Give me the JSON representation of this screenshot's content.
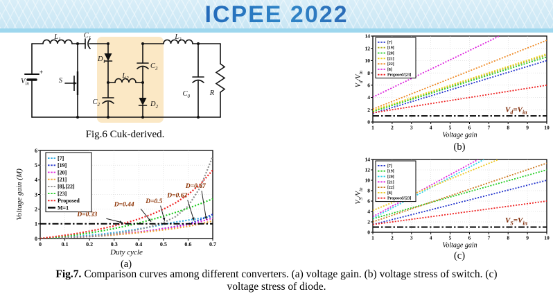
{
  "header": {
    "title": "ICPEE 2022"
  },
  "figure6": {
    "caption": "Fig.6 Cuk-derived.",
    "labels": {
      "vin": [
        "V",
        "in"
      ],
      "plus": "+",
      "l1": [
        "L",
        "1"
      ],
      "c1": [
        "C",
        "1"
      ],
      "s": [
        "S",
        ""
      ],
      "d1": [
        "D",
        "1"
      ],
      "c3": [
        "C",
        "3"
      ],
      "l2": [
        "L",
        "2"
      ],
      "c2": [
        "C",
        "2"
      ],
      "d2": [
        "D",
        "2"
      ],
      "l3": [
        "L",
        "3"
      ],
      "c0": [
        "C",
        "0"
      ],
      "r": [
        "R",
        ""
      ]
    }
  },
  "figure7": {
    "fig_label": "Fig.7.",
    "caption_line1": "Comparison curves among different converters. (a) voltage gain. (b) voltage stress of switch. (c)",
    "caption_line2": "voltage stress of diode."
  },
  "chart_data": [
    {
      "id": "a",
      "type": "line",
      "sublabel": "(a)",
      "xlabel": "Duty cycle",
      "ylabel": "Voltage gain (M)",
      "xlim": [
        0,
        0.7
      ],
      "ylim": [
        0,
        6
      ],
      "grid": true,
      "legend_position": "top-left",
      "xticks": [
        0,
        0.1,
        0.2,
        0.3,
        0.4,
        0.5,
        0.6,
        0.7
      ],
      "yticks": [
        0,
        1,
        2,
        3,
        4,
        5,
        6
      ],
      "ann_color": "#8B3000",
      "series": [
        {
          "name": "[7]",
          "color": "#2aa8e0",
          "x": [
            0,
            0.05,
            0.1,
            0.15,
            0.2,
            0.25,
            0.3,
            0.35,
            0.4,
            0.45,
            0.5,
            0.55,
            0.6,
            0.65,
            0.7
          ],
          "y": [
            0,
            0.04,
            0.09,
            0.15,
            0.22,
            0.3,
            0.4,
            0.52,
            0.65,
            0.8,
            0.97,
            1.12,
            1.25,
            1.38,
            1.5
          ]
        },
        {
          "name": "[19]",
          "color": "#2233cc",
          "x": [
            0,
            0.05,
            0.1,
            0.15,
            0.2,
            0.25,
            0.3,
            0.35,
            0.4,
            0.45,
            0.5,
            0.55,
            0.6,
            0.65,
            0.7
          ],
          "y": [
            0,
            0.02,
            0.05,
            0.09,
            0.13,
            0.18,
            0.25,
            0.33,
            0.43,
            0.55,
            0.68,
            0.82,
            1.0,
            1.28,
            1.65
          ]
        },
        {
          "name": "[20]",
          "color": "#e020e0",
          "x": [
            0,
            0.05,
            0.1,
            0.15,
            0.2,
            0.25,
            0.3,
            0.35,
            0.4,
            0.45,
            0.5,
            0.55,
            0.6,
            0.65,
            0.7
          ],
          "y": [
            0,
            0.03,
            0.06,
            0.1,
            0.15,
            0.21,
            0.28,
            0.36,
            0.45,
            0.55,
            0.67,
            0.8,
            0.95,
            1.15,
            1.4
          ]
        },
        {
          "name": "[21]",
          "color": "#f0a438",
          "x": [
            0,
            0.05,
            0.1,
            0.15,
            0.2,
            0.25,
            0.3,
            0.35,
            0.4,
            0.45,
            0.5,
            0.55,
            0.6,
            0.65,
            0.7
          ],
          "y": [
            0,
            0.02,
            0.05,
            0.09,
            0.14,
            0.19,
            0.25,
            0.32,
            0.4,
            0.49,
            0.59,
            0.7,
            0.83,
            1.0,
            1.2
          ]
        },
        {
          "name": "[8],[22]",
          "color": "#8c8c8c",
          "x": [
            0,
            0.05,
            0.1,
            0.15,
            0.2,
            0.25,
            0.3,
            0.35,
            0.4,
            0.45,
            0.5,
            0.55,
            0.6,
            0.65,
            0.7
          ],
          "y": [
            0,
            0.02,
            0.05,
            0.09,
            0.15,
            0.22,
            0.32,
            0.45,
            0.62,
            0.82,
            1.08,
            1.5,
            2.2,
            3.5,
            5.6
          ]
        },
        {
          "name": "[23]",
          "color": "#22cc22",
          "x": [
            0,
            0.05,
            0.1,
            0.15,
            0.2,
            0.25,
            0.3,
            0.35,
            0.4,
            0.45,
            0.5,
            0.55,
            0.6,
            0.65,
            0.7
          ],
          "y": [
            0,
            0.07,
            0.16,
            0.26,
            0.38,
            0.52,
            0.68,
            0.86,
            1.06,
            1.28,
            1.52,
            1.78,
            2.06,
            2.37,
            2.7
          ]
        },
        {
          "name": "Proposed",
          "color": "#ee2222",
          "x": [
            0,
            0.05,
            0.1,
            0.15,
            0.2,
            0.25,
            0.3,
            0.35,
            0.4,
            0.45,
            0.5,
            0.55,
            0.6,
            0.65,
            0.7
          ],
          "y": [
            0,
            0.11,
            0.22,
            0.35,
            0.5,
            0.67,
            0.86,
            1.08,
            1.33,
            1.64,
            2.0,
            2.44,
            3.0,
            3.71,
            4.67
          ]
        },
        {
          "name": "M=1",
          "color": "#000000",
          "style": "dashdot",
          "x": [
            0,
            0.7
          ],
          "y": [
            1,
            1
          ]
        }
      ],
      "annotations": [
        {
          "text": "D=0.33",
          "text_at": [
            0.15,
            1.52
          ],
          "arrow": [
            0.268,
            1.36,
            0.335,
            1.08
          ]
        },
        {
          "text": "D=0.44",
          "text_at": [
            0.3,
            2.2
          ],
          "arrow": [
            0.408,
            2.02,
            0.45,
            1.14
          ]
        },
        {
          "text": "D=0.5",
          "text_at": [
            0.428,
            2.42
          ],
          "arrow": [
            0.488,
            2.24,
            0.505,
            1.2
          ]
        },
        {
          "text": "D=0.62",
          "text_at": [
            0.515,
            2.82
          ],
          "arrow": [
            0.598,
            2.62,
            0.624,
            1.22
          ]
        },
        {
          "text": "D=0.67",
          "text_at": [
            0.59,
            3.45
          ],
          "arrow": [
            0.655,
            3.25,
            0.674,
            1.28
          ]
        }
      ]
    },
    {
      "id": "b",
      "type": "line",
      "sublabel": "(b)",
      "xlabel": "Voltage gain",
      "ylabel_parts": [
        [
          "V",
          0
        ],
        [
          "d",
          1
        ],
        [
          "/V",
          0
        ],
        [
          "in",
          1
        ]
      ],
      "xlim": [
        1,
        10
      ],
      "ylim": [
        0,
        14
      ],
      "grid": true,
      "legend_position": "top-left",
      "xticks": [
        1,
        2,
        3,
        4,
        5,
        6,
        7,
        8,
        9,
        10
      ],
      "yticks": [
        0,
        2,
        4,
        6,
        8,
        10,
        12,
        14
      ],
      "ann_color": "#7B2500",
      "series": [
        {
          "name": "[7]",
          "color": "#2233cc",
          "x": [
            1,
            10
          ],
          "y": [
            1.4,
            10.0
          ]
        },
        {
          "name": "[19]",
          "color": "#b0b028",
          "x": [
            1,
            10
          ],
          "y": [
            1.8,
            10.9
          ]
        },
        {
          "name": "[20]",
          "color": "#22cc22",
          "x": [
            1,
            10
          ],
          "y": [
            1.7,
            10.6
          ]
        },
        {
          "name": "[21]",
          "color": "#ecd41e",
          "x": [
            1,
            10
          ],
          "y": [
            1.9,
            11.1
          ]
        },
        {
          "name": "[22]",
          "color": "#ee8822",
          "x": [
            1,
            10
          ],
          "y": [
            2.1,
            13.3
          ]
        },
        {
          "name": "[8]",
          "color": "#dd22dd",
          "x": [
            1,
            7.55
          ],
          "y": [
            4.05,
            14.0
          ]
        },
        {
          "name": "Proposed/[23]",
          "color": "#ee2222",
          "x": [
            1,
            10
          ],
          "y": [
            1.5,
            6.0
          ]
        },
        {
          "name": "",
          "nolegend": true,
          "color": "#000000",
          "style": "dashdot",
          "x": [
            1,
            10
          ],
          "y": [
            1,
            1
          ]
        }
      ],
      "annotations": [
        {
          "text_parts": [
            [
              "V",
              0
            ],
            [
              "d",
              1
            ],
            [
              "=V",
              0
            ],
            [
              "in",
              1
            ]
          ],
          "text_at": [
            7.85,
            1.65
          ]
        }
      ]
    },
    {
      "id": "c",
      "type": "line",
      "sublabel": "(c)",
      "xlabel": "Voltage gain",
      "ylabel_parts": [
        [
          "V",
          0
        ],
        [
          "S",
          1
        ],
        [
          "/V",
          0
        ],
        [
          "in",
          1
        ]
      ],
      "xlim": [
        1,
        10
      ],
      "ylim": [
        0,
        14
      ],
      "grid": true,
      "legend_position": "top-left",
      "xticks": [
        1,
        2,
        3,
        4,
        5,
        6,
        7,
        8,
        9,
        10
      ],
      "yticks": [
        0,
        2,
        4,
        6,
        8,
        10,
        12,
        14
      ],
      "ann_color": "#7B2500",
      "series": [
        {
          "name": "[7]",
          "color": "#2233cc",
          "x": [
            1,
            10
          ],
          "y": [
            1.5,
            10.0
          ]
        },
        {
          "name": "[19]",
          "color": "#22cc22",
          "x": [
            1,
            10
          ],
          "y": [
            2.6,
            12.0
          ]
        },
        {
          "name": "[20]",
          "color": "#2fd4e8",
          "x": [
            1,
            6.75
          ],
          "y": [
            2.7,
            14.0
          ]
        },
        {
          "name": "[21]",
          "color": "#e020e0",
          "x": [
            1,
            6.45
          ],
          "y": [
            3.0,
            14.0
          ]
        },
        {
          "name": "[22]",
          "color": "#cc7a22",
          "x": [
            1,
            10
          ],
          "y": [
            2.0,
            13.3
          ]
        },
        {
          "name": "[8]",
          "color": "#eec822",
          "x": [
            1,
            7.5
          ],
          "y": [
            4.2,
            14.0
          ]
        },
        {
          "name": "Proposed/[23]",
          "color": "#ee2222",
          "x": [
            1,
            10
          ],
          "y": [
            1.5,
            6.0
          ]
        },
        {
          "name": "",
          "nolegend": true,
          "color": "#000000",
          "style": "dashdot",
          "x": [
            1,
            10
          ],
          "y": [
            1,
            1
          ]
        }
      ],
      "annotations": [
        {
          "text_parts": [
            [
              "V",
              0
            ],
            [
              "S",
              1
            ],
            [
              "=V",
              0
            ],
            [
              "in",
              1
            ]
          ],
          "text_at": [
            7.85,
            1.85
          ]
        }
      ]
    }
  ]
}
